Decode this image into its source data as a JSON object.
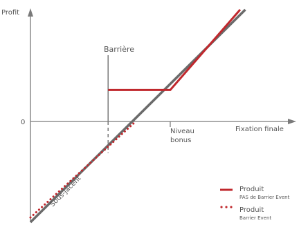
{
  "chart_data": {
    "type": "line",
    "title": "",
    "xlabel": "Fixation finale",
    "ylabel": "Profit",
    "y_zero_label": "0",
    "xlim": [
      0,
      100
    ],
    "ylim": [
      -40,
      50
    ],
    "annotations": {
      "barrier": {
        "label": "Barrière",
        "x": 30
      },
      "bonus_level": {
        "label_line1": "Niveau",
        "label_line2": "bonus",
        "x": 54
      },
      "underlying": {
        "label": "Sous-jacent"
      }
    },
    "series": [
      {
        "name": "Sous-jacent",
        "style": "solid",
        "color": "#6a6a6a",
        "points": [
          [
            0,
            -40
          ],
          [
            83,
            50
          ]
        ]
      },
      {
        "name": "Produit",
        "subtitle": "PAS de Barrier Event",
        "style": "solid",
        "color": "#c0282d",
        "points": [
          [
            30,
            16
          ],
          [
            54,
            16
          ],
          [
            81,
            50
          ]
        ]
      },
      {
        "name": "Produit",
        "subtitle": "Barrier Event",
        "style": "dotted",
        "color": "#c0282d",
        "points": [
          [
            0,
            -38
          ],
          [
            40,
            2
          ]
        ]
      }
    ],
    "legend": {
      "position": "bottom-right",
      "items": [
        {
          "label": "Produit",
          "sublabel": "PAS de Barrier Event",
          "style": "solid"
        },
        {
          "label": "Produit",
          "sublabel": "Barrier Event",
          "style": "dotted"
        }
      ]
    },
    "colors": {
      "axis": "#7a7a7a",
      "underlying": "#6a6a6a",
      "product": "#c0282d",
      "text": "#555555"
    }
  }
}
